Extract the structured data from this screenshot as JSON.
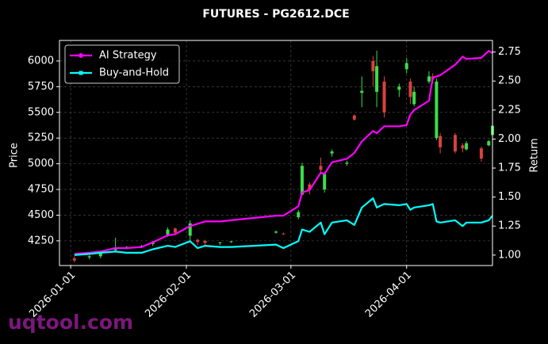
{
  "chart_data": {
    "type": "candlestick",
    "title": "FUTURES - PG2612.DCE",
    "ylabel": "Price",
    "y2label": "Return",
    "x": [
      "2026-01-02",
      "2026-01-06",
      "2026-01-09",
      "2026-01-13",
      "2026-01-16",
      "2026-01-20",
      "2026-01-23",
      "2026-01-27",
      "2026-01-29",
      "2026-02-02",
      "2026-02-04",
      "2026-02-06",
      "2026-02-10",
      "2026-02-13",
      "2026-02-25",
      "2026-02-27",
      "2026-03-03",
      "2026-03-04",
      "2026-03-06",
      "2026-03-09",
      "2026-03-10",
      "2026-03-12",
      "2026-03-16",
      "2026-03-18",
      "2026-03-20",
      "2026-03-23",
      "2026-03-24",
      "2026-03-26",
      "2026-03-30",
      "2026-04-01",
      "2026-04-02",
      "2026-04-03",
      "2026-04-07",
      "2026-04-08",
      "2026-04-09",
      "2026-04-10",
      "2026-04-14",
      "2026-04-16",
      "2026-04-17",
      "2026-04-21",
      "2026-04-23",
      "2026-04-24"
    ],
    "open": [
      4080,
      4090,
      4100,
      4160,
      4180,
      4190,
      4220,
      4310,
      4370,
      4300,
      4260,
      4250,
      4230,
      4240,
      4330,
      4320,
      4480,
      4700,
      4800,
      4980,
      4750,
      5100,
      5000,
      5470,
      5690,
      6000,
      5700,
      5800,
      5720,
      5920,
      5800,
      5580,
      5800,
      5850,
      5250,
      5270,
      5280,
      5180,
      5140,
      5150,
      5180,
      5280
    ],
    "high": [
      4100,
      4110,
      4150,
      4280,
      4200,
      4210,
      4250,
      4380,
      4380,
      4450,
      4270,
      4260,
      4240,
      4250,
      4350,
      4330,
      4550,
      5010,
      4820,
      5060,
      4920,
      5140,
      5030,
      5480,
      5850,
      6050,
      6100,
      5850,
      5780,
      6030,
      5830,
      5750,
      5900,
      5880,
      5830,
      5300,
      5300,
      5200,
      5220,
      5170,
      5230,
      5400
    ],
    "low": [
      4040,
      4070,
      4080,
      4150,
      4170,
      4180,
      4200,
      4290,
      4320,
      4250,
      4210,
      4200,
      4210,
      4230,
      4320,
      4310,
      4460,
      4690,
      4700,
      4920,
      4720,
      5070,
      4980,
      5420,
      5550,
      5750,
      5550,
      5450,
      5650,
      5880,
      5580,
      5560,
      5780,
      5780,
      5230,
      5100,
      5100,
      5110,
      5130,
      5020,
      5170,
      5270
    ],
    "close": [
      4060,
      4100,
      4140,
      4180,
      4190,
      4200,
      4240,
      4360,
      4330,
      4420,
      4240,
      4230,
      4235,
      4245,
      4340,
      4315,
      4530,
      4980,
      4750,
      4940,
      4900,
      5120,
      5010,
      5430,
      5710,
      5900,
      5950,
      5500,
      5750,
      5980,
      5650,
      5700,
      5850,
      5820,
      5800,
      5160,
      5120,
      5150,
      5200,
      5050,
      5220,
      5370
    ],
    "up_color": "#3ddc4a",
    "down_color": "#d9413e",
    "series": [
      {
        "name": "AI Strategy",
        "color": "#ff00ff",
        "marker": "circle",
        "axis": "y2",
        "values": [
          1.01,
          1.02,
          1.03,
          1.06,
          1.06,
          1.07,
          1.11,
          1.17,
          1.18,
          1.25,
          1.27,
          1.29,
          1.29,
          1.3,
          1.34,
          1.34,
          1.42,
          1.54,
          1.56,
          1.71,
          1.7,
          1.8,
          1.83,
          1.88,
          1.98,
          2.07,
          2.05,
          2.11,
          2.11,
          2.12,
          2.21,
          2.25,
          2.33,
          2.53,
          2.54,
          2.55,
          2.64,
          2.71,
          2.69,
          2.7,
          2.76,
          2.74
        ]
      },
      {
        "name": "Buy-and-Hold",
        "color": "#00ffff",
        "marker": "square",
        "axis": "y2",
        "values": [
          1.0,
          1.01,
          1.02,
          1.03,
          1.02,
          1.02,
          1.05,
          1.08,
          1.07,
          1.12,
          1.06,
          1.08,
          1.07,
          1.07,
          1.09,
          1.06,
          1.12,
          1.22,
          1.2,
          1.28,
          1.18,
          1.28,
          1.3,
          1.26,
          1.41,
          1.49,
          1.41,
          1.44,
          1.43,
          1.44,
          1.39,
          1.41,
          1.43,
          1.44,
          1.29,
          1.28,
          1.3,
          1.25,
          1.28,
          1.28,
          1.3,
          1.34
        ]
      }
    ],
    "xlim": [
      "2025-12-29",
      "2026-04-24"
    ],
    "xticks": [
      "2026-01-01",
      "2026-02-01",
      "2026-03-01",
      "2026-04-01"
    ],
    "ylim": [
      4010,
      6200
    ],
    "yticks": [
      4250,
      4500,
      4750,
      5000,
      5250,
      5500,
      5750,
      6000
    ],
    "y2lim": [
      0.91,
      2.85
    ],
    "y2ticks": [
      {
        "value": 1,
        "label": "1.00"
      },
      {
        "value": 1.25,
        "label": "1.25"
      },
      {
        "value": 1.5,
        "label": "1.50"
      },
      {
        "value": 1.75,
        "label": "1.75"
      },
      {
        "value": 2,
        "label": "2.00"
      },
      {
        "value": 2.25,
        "label": "2.25"
      },
      {
        "value": 2.5,
        "label": "2.50"
      },
      {
        "value": 2.75,
        "label": "2.75"
      }
    ],
    "grid": true,
    "legend": "upper left"
  },
  "watermark": "uqtool.com"
}
